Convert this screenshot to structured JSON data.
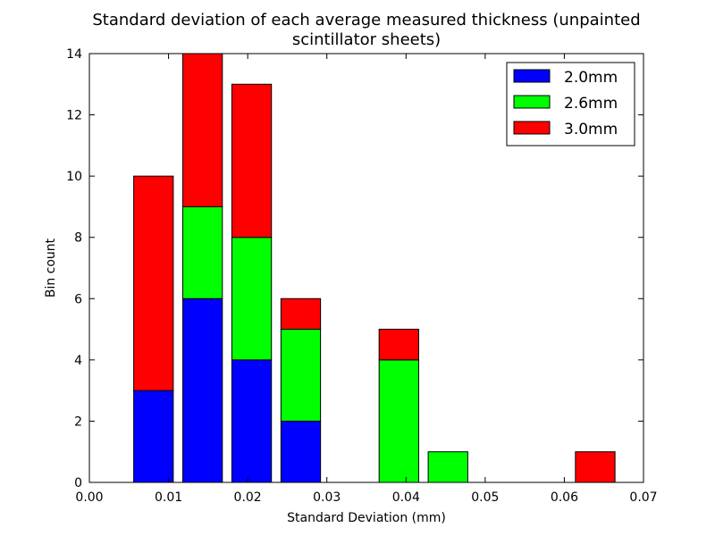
{
  "chart_data": {
    "type": "bar",
    "stacked": true,
    "title": "Standard deviation of each average measured thickness (unpainted\nscintillator sheets)",
    "xlabel": "Standard Deviation (mm)",
    "ylabel": "Bin count",
    "xlim": [
      0.0,
      0.07
    ],
    "ylim": [
      0,
      14
    ],
    "xticks": [
      0.0,
      0.01,
      0.02,
      0.03,
      0.04,
      0.05,
      0.06,
      0.07
    ],
    "xtick_labels": [
      "0.00",
      "0.01",
      "0.02",
      "0.03",
      "0.04",
      "0.05",
      "0.06",
      "0.07"
    ],
    "yticks": [
      0,
      2,
      4,
      6,
      8,
      10,
      12,
      14
    ],
    "ytick_labels": [
      "0",
      "2",
      "4",
      "6",
      "8",
      "10",
      "12",
      "14"
    ],
    "bins": [
      {
        "x0": 0.0056,
        "x1": 0.0106
      },
      {
        "x0": 0.0118,
        "x1": 0.0168
      },
      {
        "x0": 0.018,
        "x1": 0.023
      },
      {
        "x0": 0.0242,
        "x1": 0.0292
      },
      {
        "x0": 0.0304,
        "x1": 0.0354
      },
      {
        "x0": 0.0366,
        "x1": 0.0416
      },
      {
        "x0": 0.0428,
        "x1": 0.0478
      },
      {
        "x0": 0.049,
        "x1": 0.054
      },
      {
        "x0": 0.0552,
        "x1": 0.0602
      },
      {
        "x0": 0.0614,
        "x1": 0.0664
      }
    ],
    "series": [
      {
        "name": "2.0mm",
        "color": "#0000ff",
        "values": [
          3,
          6,
          4,
          2,
          0,
          0,
          0,
          0,
          0,
          0
        ]
      },
      {
        "name": "2.6mm",
        "color": "#00ff00",
        "values": [
          0,
          3,
          4,
          3,
          0,
          4,
          1,
          0,
          0,
          0
        ]
      },
      {
        "name": "3.0mm",
        "color": "#ff0000",
        "values": [
          7,
          5,
          5,
          1,
          0,
          1,
          0,
          0,
          0,
          1
        ]
      }
    ],
    "legend_position": "upper right",
    "grid": false
  }
}
